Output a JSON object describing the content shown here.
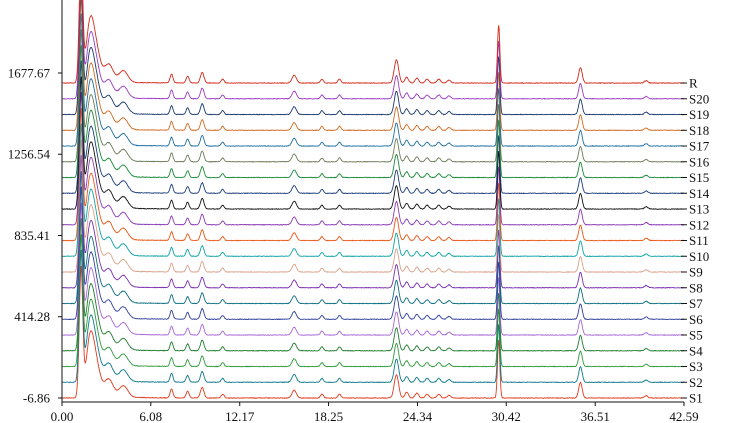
{
  "chart_data": {
    "type": "line",
    "title": "",
    "xlabel": "",
    "ylabel": "",
    "xlim": [
      0.0,
      42.59
    ],
    "ylim": [
      -6.86,
      1677.67
    ],
    "x_ticks": [
      "0.00",
      "6.08",
      "12.17",
      "18.25",
      "24.34",
      "30.42",
      "36.51",
      "42.59"
    ],
    "y_ticks": [
      "-6.86",
      "414.28",
      "835.41",
      "1256.54",
      "1677.67"
    ],
    "offset_per_trace": 81.63,
    "peaks": [
      {
        "x": 1.3,
        "h": 650,
        "w": 0.12
      },
      {
        "x": 1.9,
        "h": 250,
        "w": 0.25
      },
      {
        "x": 2.3,
        "h": 170,
        "w": 0.3
      },
      {
        "x": 3.2,
        "h": 90,
        "w": 0.3
      },
      {
        "x": 4.2,
        "h": 60,
        "w": 0.3
      },
      {
        "x": 7.5,
        "h": 45,
        "w": 0.1
      },
      {
        "x": 8.6,
        "h": 35,
        "w": 0.1
      },
      {
        "x": 9.6,
        "h": 55,
        "w": 0.12
      },
      {
        "x": 11.0,
        "h": 20,
        "w": 0.1
      },
      {
        "x": 15.9,
        "h": 40,
        "w": 0.15
      },
      {
        "x": 17.8,
        "h": 20,
        "w": 0.1
      },
      {
        "x": 19.0,
        "h": 20,
        "w": 0.1
      },
      {
        "x": 22.9,
        "h": 120,
        "w": 0.15
      },
      {
        "x": 23.6,
        "h": 30,
        "w": 0.12
      },
      {
        "x": 24.3,
        "h": 25,
        "w": 0.12
      },
      {
        "x": 25.0,
        "h": 20,
        "w": 0.12
      },
      {
        "x": 25.8,
        "h": 20,
        "w": 0.12
      },
      {
        "x": 26.5,
        "h": 15,
        "w": 0.12
      },
      {
        "x": 29.9,
        "h": 300,
        "w": 0.08
      },
      {
        "x": 35.5,
        "h": 80,
        "w": 0.12
      },
      {
        "x": 40.0,
        "h": 12,
        "w": 0.12
      }
    ],
    "series": [
      {
        "name": "S1",
        "color": "#e03a1c",
        "offset": -6.86
      },
      {
        "name": "S2",
        "color": "#0f7a8c",
        "offset": 74.77
      },
      {
        "name": "S3",
        "color": "#2e9a3c",
        "offset": 156.4
      },
      {
        "name": "S4",
        "color": "#1f7d2e",
        "offset": 238.03
      },
      {
        "name": "S5",
        "color": "#a667d6",
        "offset": 319.66
      },
      {
        "name": "S6",
        "color": "#2e3f9a",
        "offset": 401.29
      },
      {
        "name": "S7",
        "color": "#0f6f82",
        "offset": 482.92
      },
      {
        "name": "S8",
        "color": "#7a2fb0",
        "offset": 564.55
      },
      {
        "name": "S9",
        "color": "#d9a189",
        "offset": 646.18
      },
      {
        "name": "S10",
        "color": "#10a3a8",
        "offset": 727.81
      },
      {
        "name": "S11",
        "color": "#e85818",
        "offset": 809.44
      },
      {
        "name": "S12",
        "color": "#8a3ab5",
        "offset": 891.07
      },
      {
        "name": "S13",
        "color": "#111111",
        "offset": 972.7
      },
      {
        "name": "S14",
        "color": "#1c3e7a",
        "offset": 1054.33
      },
      {
        "name": "S15",
        "color": "#1a8a3a",
        "offset": 1135.96
      },
      {
        "name": "S16",
        "color": "#6b7d5a",
        "offset": 1217.59
      },
      {
        "name": "S17",
        "color": "#1f6fa0",
        "offset": 1299.22
      },
      {
        "name": "S18",
        "color": "#d06a22",
        "offset": 1380.85
      },
      {
        "name": "S19",
        "color": "#1c3a6e",
        "offset": 1462.48
      },
      {
        "name": "S20",
        "color": "#9a3bc2",
        "offset": 1544.11
      },
      {
        "name": "R",
        "color": "#d42a1a",
        "offset": 1625.74
      }
    ],
    "grid": false,
    "legend": "right, inline labels at trace ends"
  }
}
